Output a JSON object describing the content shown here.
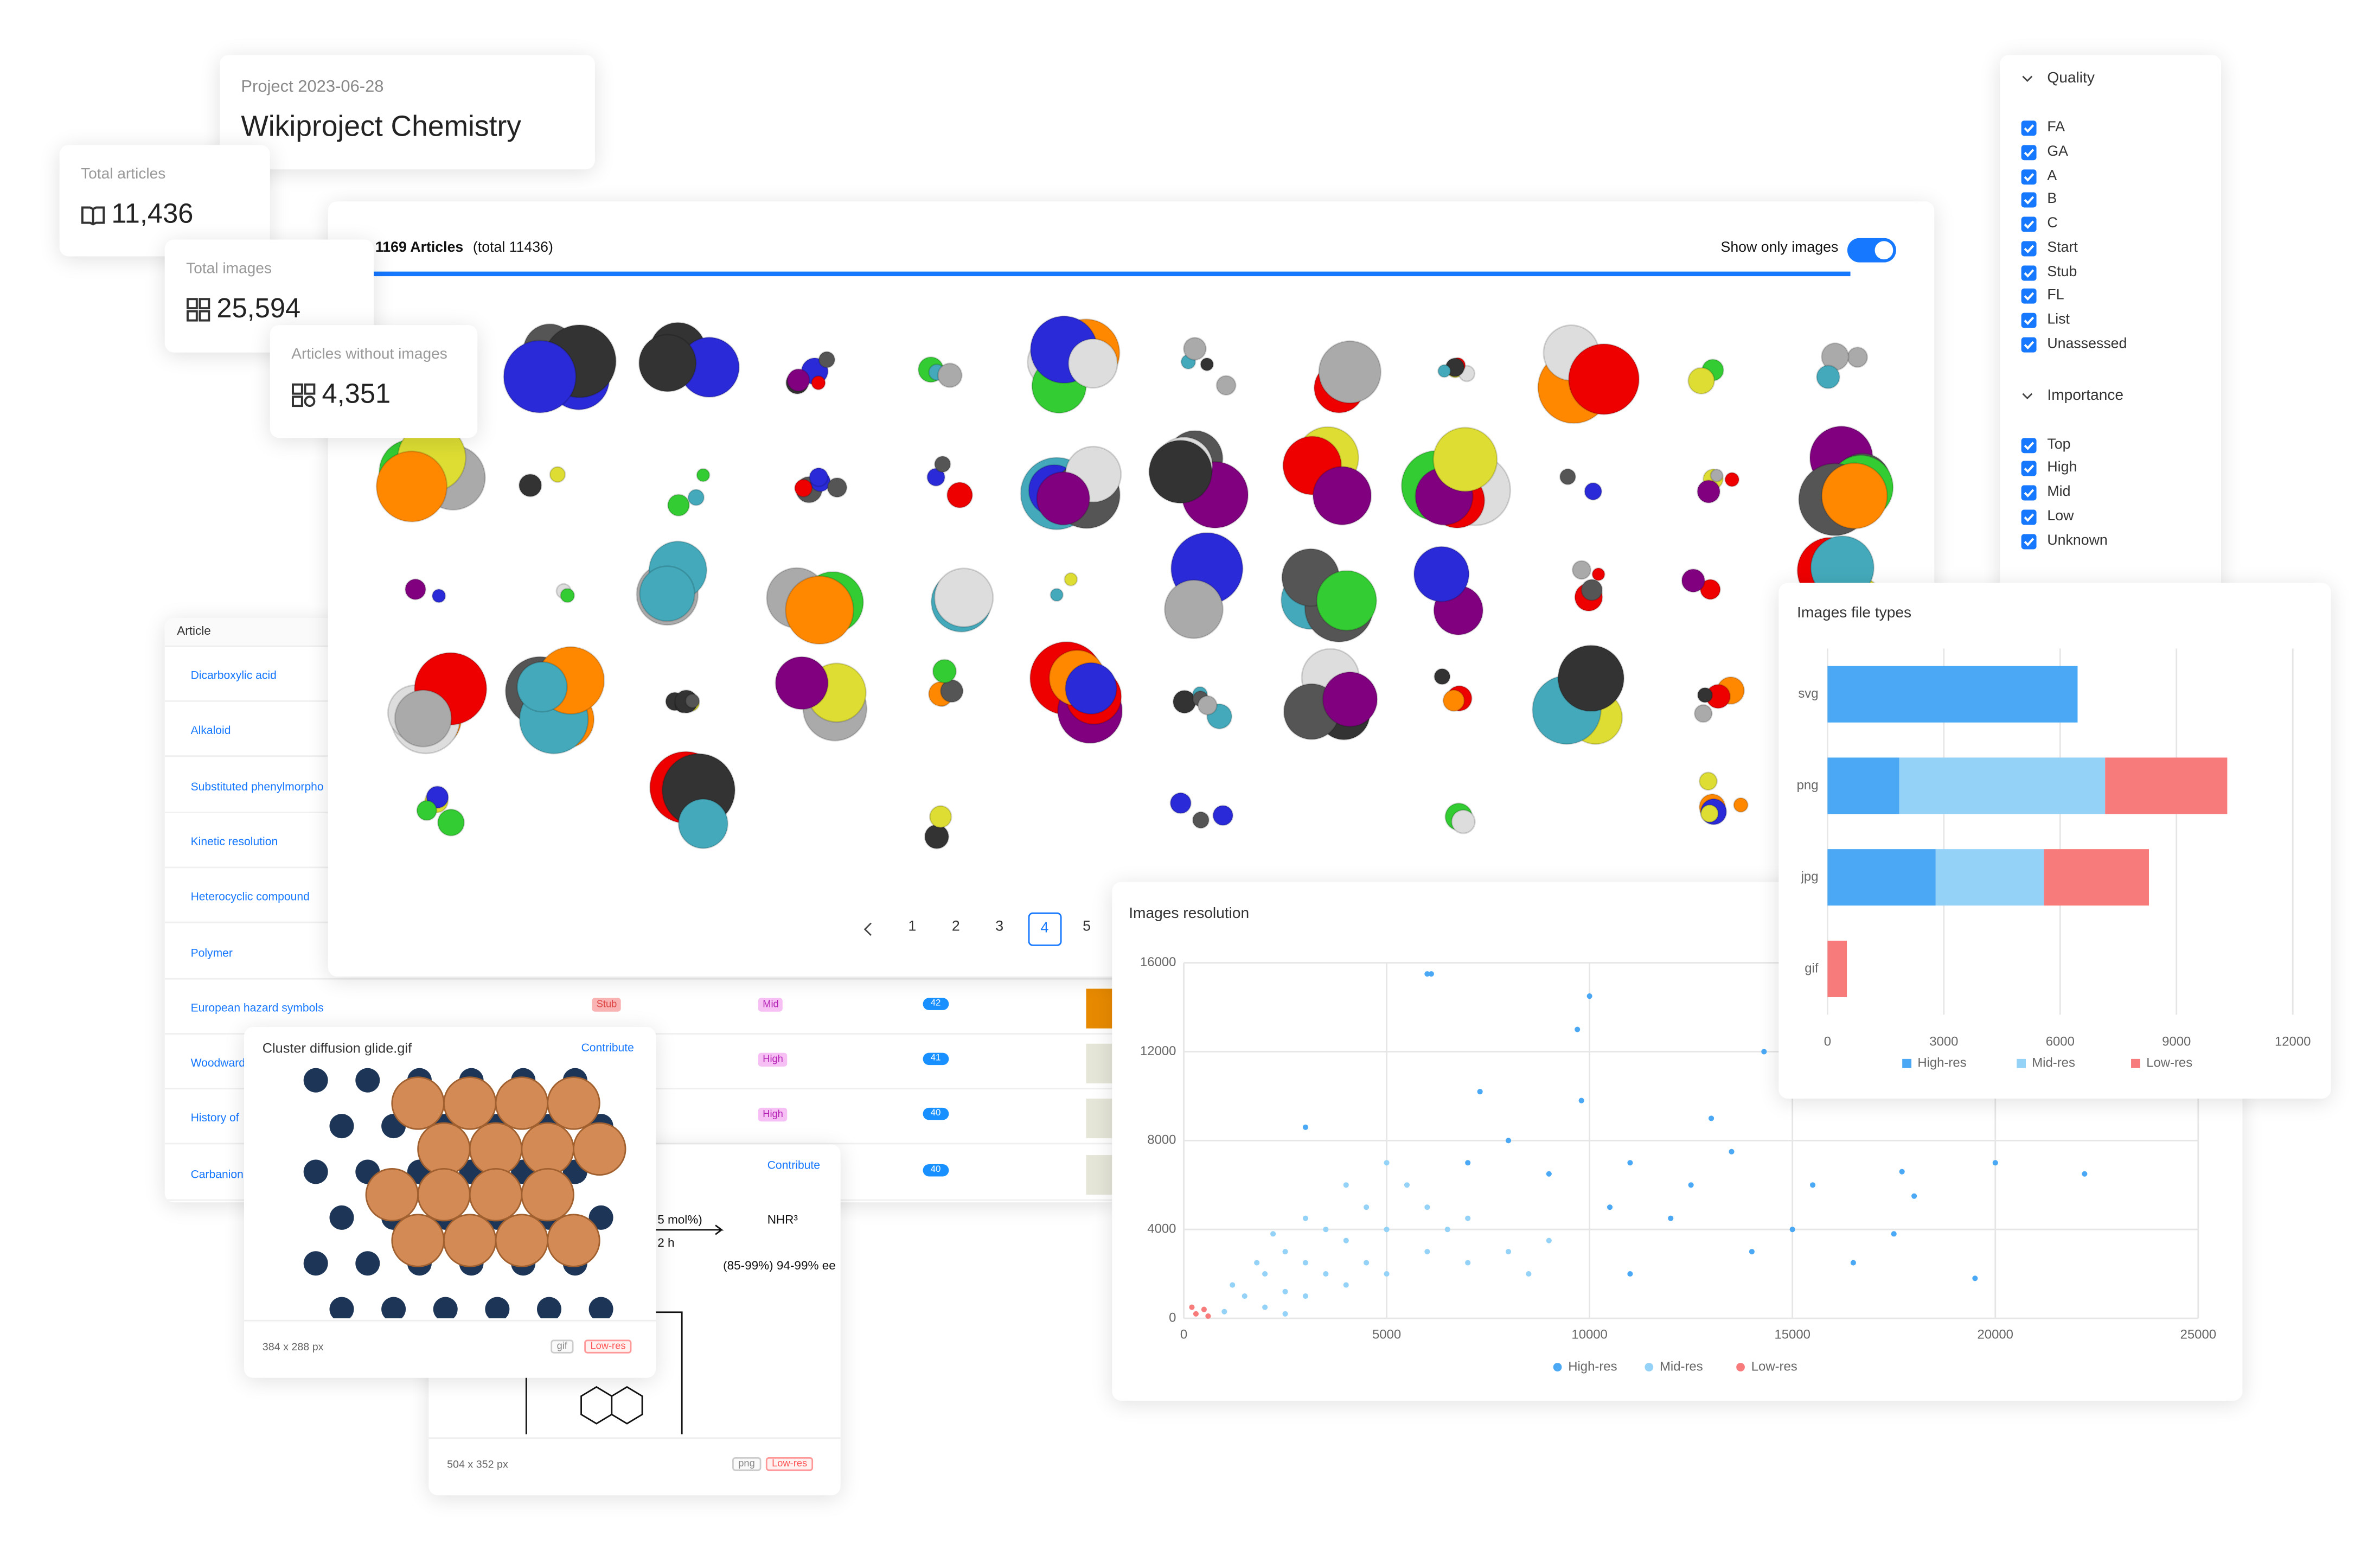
{
  "project": {
    "date_label": "Project 2023-06-28",
    "title": "Wikiproject Chemistry"
  },
  "stats": [
    {
      "label": "Total articles",
      "value": "11,436"
    },
    {
      "label": "Total images",
      "value": "25,594"
    },
    {
      "label": "Articles without images",
      "value": "4,351"
    }
  ],
  "gallery": {
    "count": "1169 Articles",
    "total": "(total 11436)",
    "toggle": "Show only images",
    "pages": [
      "1",
      "2",
      "3",
      "4",
      "5"
    ],
    "current": 3
  },
  "table": {
    "header": "Article",
    "rows": [
      {
        "article": "Dicarboxylic acid"
      },
      {
        "article": "Alkaloid"
      },
      {
        "article": "Substituted phenylmorpho"
      },
      {
        "article": "Kinetic resolution"
      },
      {
        "article": "Heterocyclic compound"
      },
      {
        "article": "Polymer"
      },
      {
        "article": "European hazard symbols",
        "quality": "Stub",
        "importance": "Mid",
        "images": "42"
      },
      {
        "article": "Woodward",
        "importance": "High",
        "images": "41"
      },
      {
        "article": "History of",
        "importance": "High",
        "images": "40"
      },
      {
        "article": "Carbanion",
        "images": "40"
      }
    ]
  },
  "filters": [
    {
      "title": "Quality",
      "items": [
        "FA",
        "GA",
        "A",
        "B",
        "C",
        "Start",
        "Stub",
        "FL",
        "List",
        "Unassessed"
      ]
    },
    {
      "title": "Importance",
      "items": [
        "Top",
        "High",
        "Mid",
        "Low",
        "Unknown"
      ]
    }
  ],
  "cards": [
    {
      "title": "Cluster diffusion glide.gif",
      "action": "Contribute",
      "size": "384 x 288 px",
      "tags": [
        "gif",
        "Low-res"
      ]
    },
    {
      "action": "Contribute",
      "size": "504 x 352 px",
      "tags": [
        "png",
        "Low-res"
      ],
      "scheme": [
        "5 mol%)",
        "2 h",
        "NHR³",
        "(85-99%) 94-99% ee"
      ]
    }
  ],
  "chart_data": [
    {
      "type": "bar",
      "orientation": "horizontal",
      "stacked": true,
      "title": "Images file types",
      "categories": [
        "svg",
        "png",
        "jpg",
        "gif"
      ],
      "series": [
        {
          "name": "High-res",
          "color": "#4aa8f5",
          "values": [
            6450,
            1850,
            2790,
            0
          ]
        },
        {
          "name": "Mid-res",
          "color": "#95d2f8",
          "values": [
            0,
            5310,
            2790,
            0
          ]
        },
        {
          "name": "Low-res",
          "color": "#f77b7b",
          "values": [
            0,
            3150,
            2710,
            500
          ]
        }
      ],
      "xlim": [
        0,
        12000
      ],
      "xticks": [
        0,
        3000,
        6000,
        9000,
        12000
      ],
      "grid": true,
      "legend": "bottom"
    },
    {
      "type": "scatter",
      "title": "Images resolution",
      "xlim": [
        0,
        25000
      ],
      "ylim": [
        0,
        16000
      ],
      "xticks": [
        0,
        5000,
        10000,
        15000,
        20000,
        25000
      ],
      "yticks": [
        0,
        4000,
        8000,
        12000,
        16000
      ],
      "grid": true,
      "legend": "bottom",
      "series": [
        {
          "name": "High-res",
          "color": "#4aa8f5",
          "x": [
            6000,
            6100,
            10000,
            9700,
            14300,
            17700,
            16000,
            7300,
            9800,
            3000,
            17700,
            22200,
            19500,
            17500,
            15000,
            13000,
            11000,
            12500,
            8000,
            9000,
            14000,
            16500,
            11000,
            12000,
            10500,
            7000,
            20000,
            18000,
            13500,
            15500
          ],
          "values": [
            15500,
            15500,
            14500,
            13000,
            12000,
            11000,
            10200,
            10200,
            9800,
            8600,
            6600,
            6500,
            1800,
            3800,
            4000,
            9000,
            7000,
            6000,
            8000,
            6500,
            3000,
            2500,
            2000,
            4500,
            5000,
            7000,
            7000,
            5500,
            7500,
            6000
          ]
        },
        {
          "name": "Mid-res",
          "color": "#95d2f8",
          "x": [
            1500,
            2000,
            2500,
            3000,
            3500,
            4000,
            4500,
            5000,
            5500,
            2000,
            3000,
            4000,
            5000,
            6000,
            7000,
            8000,
            1200,
            2500,
            3500,
            4500,
            6000,
            5000,
            6500,
            3000,
            4000,
            1800,
            2200,
            7000,
            9000,
            8500,
            1000,
            2500
          ],
          "values": [
            1000,
            2000,
            3000,
            2500,
            4000,
            3500,
            5000,
            4000,
            6000,
            500,
            1000,
            1500,
            2000,
            3000,
            2500,
            3000,
            1500,
            1200,
            2000,
            2500,
            5000,
            7000,
            4000,
            4500,
            6000,
            2500,
            3800,
            4500,
            3500,
            2000,
            300,
            200
          ]
        },
        {
          "name": "Low-res",
          "color": "#f77b7b",
          "x": [
            300,
            500,
            200,
            600
          ],
          "values": [
            200,
            400,
            500,
            100
          ]
        }
      ]
    }
  ]
}
